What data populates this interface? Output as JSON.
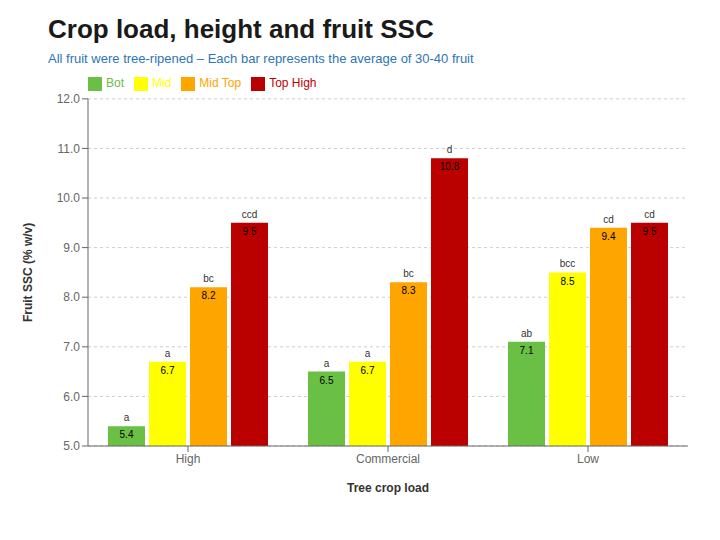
{
  "chart_data": {
    "type": "bar",
    "title": "Crop load, height and fruit SSC",
    "subtitle": "All fruit were tree-ripened – Each bar represents the average of 30-40 fruit",
    "xlabel": "Tree crop load",
    "ylabel": "Fruit SSC (% w/v)",
    "categories": [
      "High",
      "Commercial",
      "Low"
    ],
    "series": [
      {
        "name": "Bot",
        "color": "#6abf45",
        "values": [
          5.4,
          6.5,
          7.1
        ],
        "labels": [
          "a",
          "a",
          "ab"
        ]
      },
      {
        "name": "Mid",
        "color": "#ffff00",
        "values": [
          6.7,
          6.7,
          8.5
        ],
        "labels": [
          "a",
          "a",
          "bcc"
        ]
      },
      {
        "name": "Mid Top",
        "color": "#ffa500",
        "values": [
          8.2,
          8.3,
          9.4
        ],
        "labels": [
          "bc",
          "bc",
          "cd"
        ]
      },
      {
        "name": "Top High",
        "color": "#bb0000",
        "values": [
          9.5,
          10.8,
          9.5
        ],
        "labels": [
          "ccd",
          "d",
          "cd"
        ]
      }
    ],
    "ylim": [
      5.0,
      12.0
    ],
    "yticks": [
      {
        "value": 5.0,
        "label": "5.0"
      },
      {
        "value": 6.0,
        "label": "6.0"
      },
      {
        "value": 7.0,
        "label": "7.0"
      },
      {
        "value": 8.0,
        "label": "8.0"
      },
      {
        "value": 9.0,
        "label": "9.0"
      },
      {
        "value": 10.0,
        "label": "10.0"
      },
      {
        "value": 11.0,
        "label": "11.0"
      },
      {
        "value": 12.0,
        "label": "12.0"
      }
    ],
    "grid": true,
    "legend": "upper left",
    "data_labels": true
  }
}
